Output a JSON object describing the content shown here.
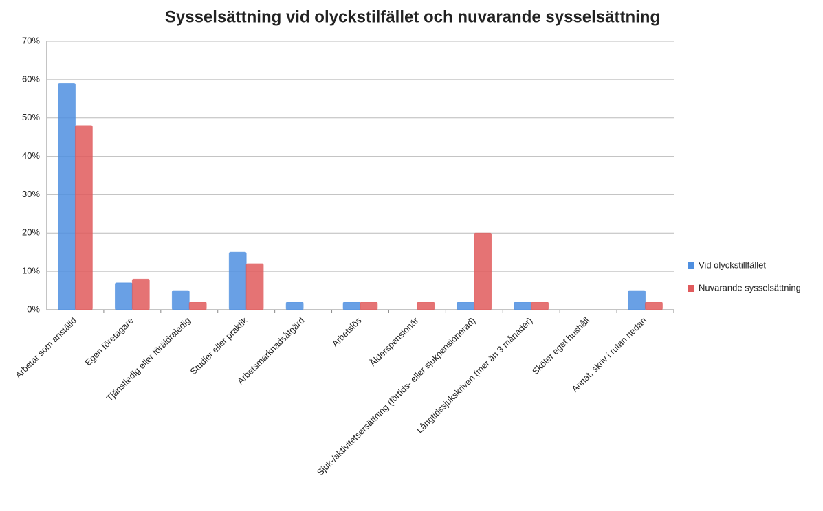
{
  "chart_data": {
    "type": "bar",
    "title": "Sysselsättning vid olyckstilfället och nuvarande sysselsättning",
    "categories": [
      "Arbetar som anställd",
      "Egen företagare",
      "Tjänstledig eller föräldraledig",
      "Studier eller praktik",
      "Arbetsmarknadsåtgärd",
      "Arbetslös",
      "Ålderspensionär",
      "Sjuk-/aktivitetsersättning (förtids- eller sjukpensionerad)",
      "Långtidssjukskriven (mer än 3 månader)",
      "Sköter eget hushåll",
      "Annat, skriv i rutan nedan"
    ],
    "series": [
      {
        "name": "Vid olyckstillfället",
        "color": "#4f8fe0",
        "values": [
          59,
          7,
          5,
          15,
          2,
          2,
          0,
          2,
          2,
          0,
          5
        ]
      },
      {
        "name": "Nuvarande sysselsättning",
        "color": "#e05a5c",
        "values": [
          48,
          8,
          2,
          12,
          0,
          2,
          2,
          20,
          2,
          0,
          2
        ]
      }
    ],
    "ylim": [
      0,
      70
    ],
    "yticks": [
      {
        "value": 0,
        "label": "0%"
      },
      {
        "value": 10,
        "label": "10%"
      },
      {
        "value": 20,
        "label": "20%"
      },
      {
        "value": 30,
        "label": "30%"
      },
      {
        "value": 40,
        "label": "40%"
      },
      {
        "value": 50,
        "label": "50%"
      },
      {
        "value": 60,
        "label": "60%"
      },
      {
        "value": 70,
        "label": "70%"
      }
    ],
    "grid": true,
    "legend": "right"
  }
}
